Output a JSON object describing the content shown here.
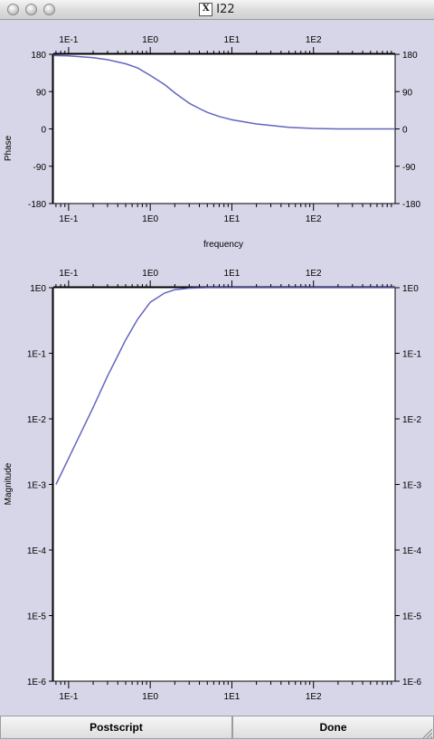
{
  "window": {
    "title": "I22"
  },
  "phase_plot": {
    "ylabel": "Phase",
    "xlabel": "frequency"
  },
  "magnitude_plot": {
    "ylabel": "Magnitude"
  },
  "buttons": {
    "postscript": "Postscript",
    "done": "Done"
  },
  "colors": {
    "curve": "#6464c0",
    "background": "#d6d6e8"
  },
  "chart_data": [
    {
      "type": "line",
      "title": "",
      "xlabel": "frequency",
      "ylabel": "Phase",
      "x_scale": "log",
      "xlim": [
        0.065,
        1000
      ],
      "ylim": [
        -180,
        180
      ],
      "x_ticks": [
        0.1,
        1,
        10,
        100
      ],
      "x_tick_labels": [
        "1E-1",
        "1E0",
        "1E1",
        "1E2"
      ],
      "y_ticks": [
        180,
        90,
        0,
        -90,
        -180
      ],
      "y_tick_labels": [
        "180",
        "90",
        "0",
        "-90",
        "-180"
      ],
      "grid": false,
      "series": [
        {
          "x": [
            0.065,
            0.1,
            0.2,
            0.3,
            0.5,
            0.7,
            1,
            1.5,
            2,
            3,
            4,
            5,
            7,
            10,
            20,
            50,
            100,
            200,
            500,
            1000
          ],
          "y": [
            177,
            176,
            172,
            167,
            157,
            147,
            129,
            107,
            87,
            62,
            49,
            40,
            30,
            22,
            12,
            4,
            1,
            0,
            0,
            0
          ]
        }
      ]
    },
    {
      "type": "line",
      "title": "",
      "xlabel": "",
      "ylabel": "Magnitude",
      "x_scale": "log",
      "y_scale": "log",
      "xlim": [
        0.065,
        1000
      ],
      "ylim": [
        1e-06,
        1
      ],
      "x_ticks": [
        0.1,
        1,
        10,
        100
      ],
      "x_tick_labels": [
        "1E-1",
        "1E0",
        "1E1",
        "1E2"
      ],
      "y_ticks": [
        1,
        0.1,
        0.01,
        0.001,
        0.0001,
        1e-05,
        1e-06
      ],
      "y_tick_labels": [
        "1E0",
        "1E-1",
        "1E-2",
        "1E-3",
        "1E-4",
        "1E-5",
        "1E-6"
      ],
      "grid": false,
      "series": [
        {
          "x": [
            0.07,
            0.1,
            0.2,
            0.3,
            0.5,
            0.7,
            1,
            1.5,
            2,
            3,
            4,
            5,
            7,
            10,
            100,
            1000
          ],
          "y": [
            0.001,
            0.0025,
            0.015,
            0.045,
            0.16,
            0.33,
            0.6,
            0.83,
            0.93,
            0.98,
            0.995,
            1,
            1,
            1,
            1,
            1
          ]
        }
      ]
    }
  ]
}
